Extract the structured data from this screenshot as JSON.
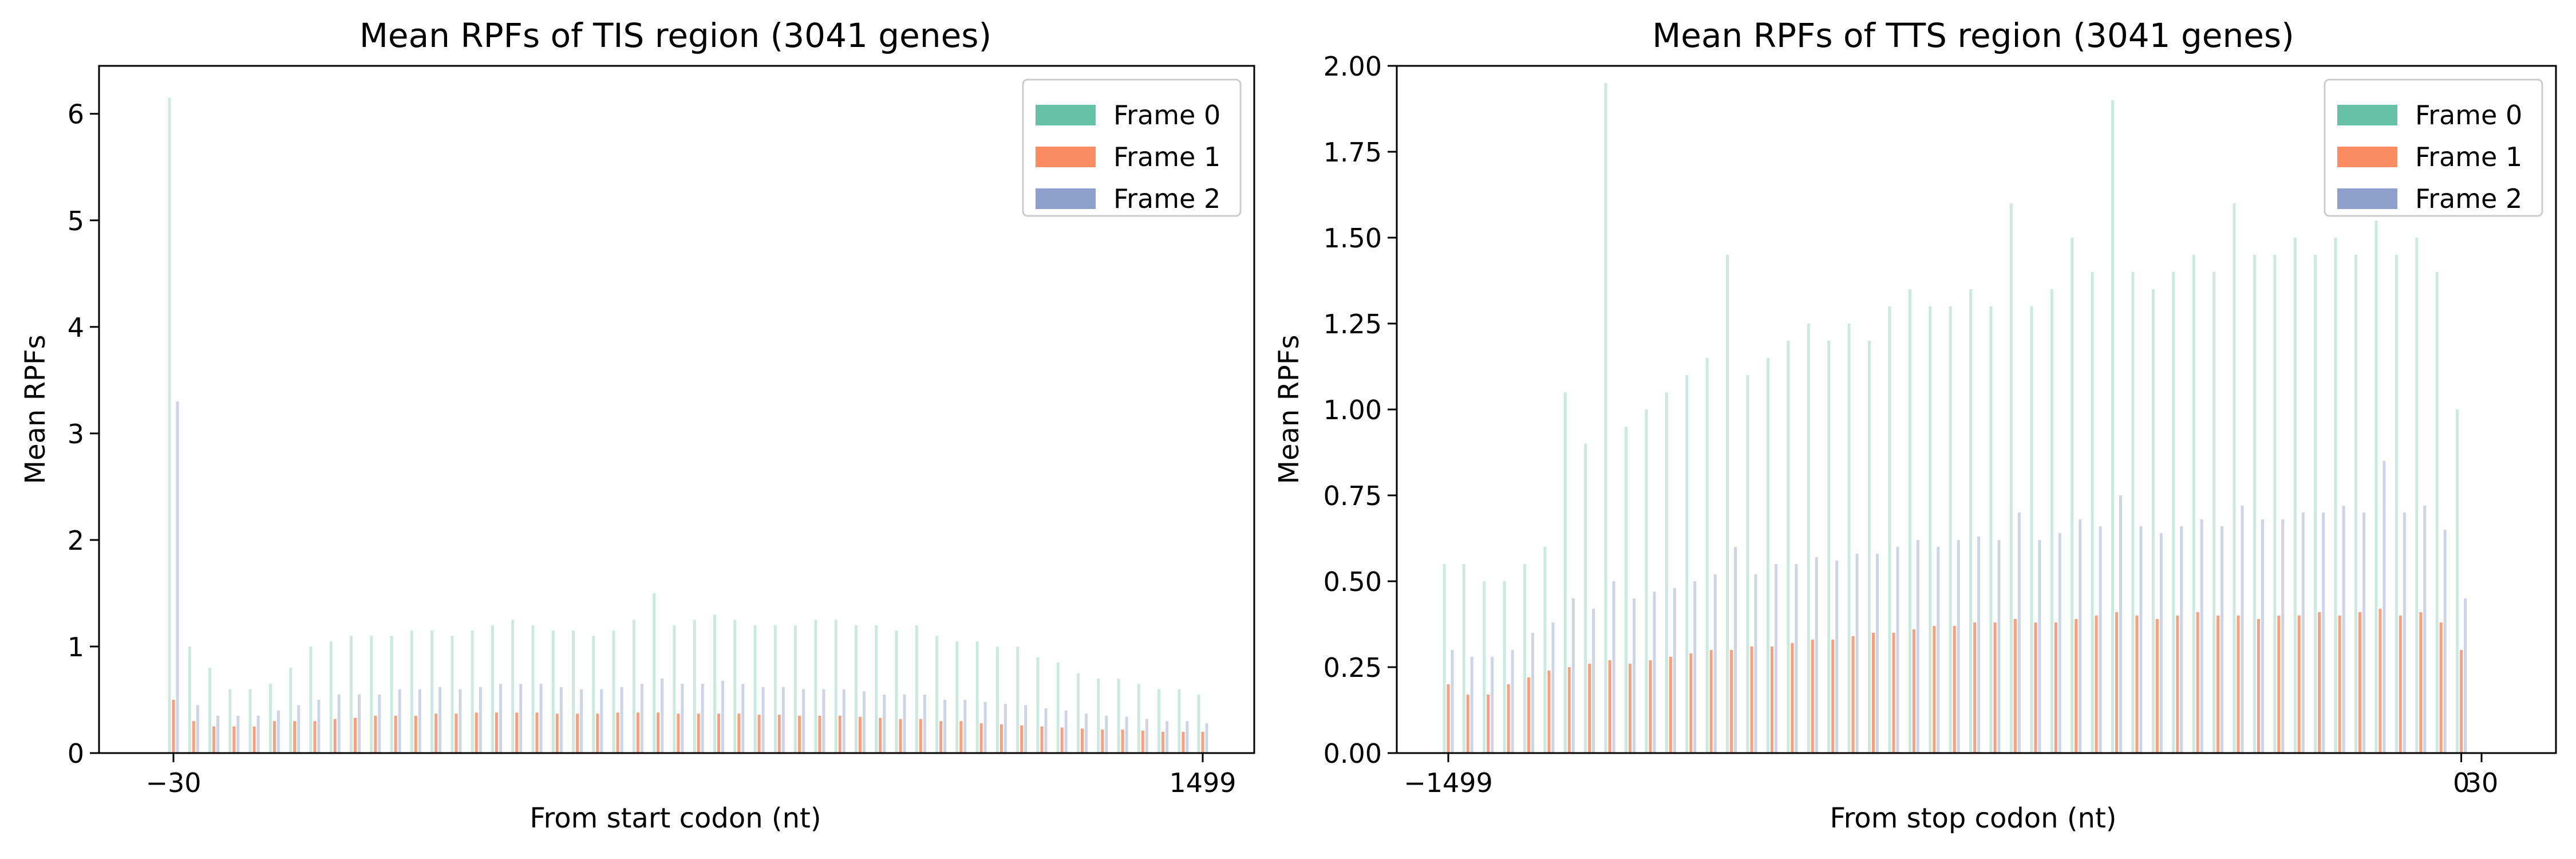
{
  "colors": {
    "frame0": "#66c2a5",
    "frame1": "#fc8d62",
    "frame2": "#8da0cb"
  },
  "chart_data": [
    {
      "type": "bar",
      "title": "Mean RPFs of TIS region (3041 genes)",
      "xlabel": "From start codon (nt)",
      "ylabel": "Mean RPFs",
      "xlim": [
        -30,
        1499
      ],
      "ylim": [
        0,
        6.45
      ],
      "x_ticks": [
        -30,
        1499
      ],
      "x_tick_labels": [
        "−30",
        "1499"
      ],
      "y_ticks": [
        0,
        1,
        2,
        3,
        4,
        5,
        6
      ],
      "y_tick_labels": [
        "0",
        "1",
        "2",
        "3",
        "4",
        "5",
        "6"
      ],
      "legend": {
        "position": "top-right",
        "entries": [
          "Frame 0",
          "Frame 1",
          "Frame 2"
        ]
      },
      "series": [
        {
          "name": "Frame 0",
          "x_step": 30,
          "x": [
            -30,
            0,
            30,
            60,
            90,
            120,
            150,
            180,
            210,
            240,
            270,
            300,
            330,
            360,
            390,
            420,
            450,
            480,
            510,
            540,
            570,
            600,
            630,
            660,
            690,
            720,
            750,
            780,
            810,
            840,
            870,
            900,
            930,
            960,
            990,
            1020,
            1050,
            1080,
            1110,
            1140,
            1170,
            1200,
            1230,
            1260,
            1290,
            1320,
            1350,
            1380,
            1410,
            1440,
            1470,
            1499
          ],
          "values": [
            6.15,
            1.0,
            0.8,
            0.6,
            0.6,
            0.65,
            0.8,
            1.0,
            1.05,
            1.1,
            1.1,
            1.1,
            1.15,
            1.15,
            1.1,
            1.15,
            1.2,
            1.25,
            1.2,
            1.15,
            1.15,
            1.1,
            1.15,
            1.25,
            1.5,
            1.2,
            1.25,
            1.3,
            1.25,
            1.2,
            1.2,
            1.2,
            1.25,
            1.25,
            1.2,
            1.2,
            1.15,
            1.2,
            1.1,
            1.05,
            1.05,
            1.0,
            1.0,
            0.9,
            0.85,
            0.75,
            0.7,
            0.7,
            0.65,
            0.6,
            0.6,
            0.55
          ]
        },
        {
          "name": "Frame 1",
          "x_step": 30,
          "x": [
            -30,
            0,
            30,
            60,
            90,
            120,
            150,
            180,
            210,
            240,
            270,
            300,
            330,
            360,
            390,
            420,
            450,
            480,
            510,
            540,
            570,
            600,
            630,
            660,
            690,
            720,
            750,
            780,
            810,
            840,
            870,
            900,
            930,
            960,
            990,
            1020,
            1050,
            1080,
            1110,
            1140,
            1170,
            1200,
            1230,
            1260,
            1290,
            1320,
            1350,
            1380,
            1410,
            1440,
            1470,
            1499
          ],
          "values": [
            0.5,
            0.3,
            0.25,
            0.25,
            0.25,
            0.3,
            0.3,
            0.3,
            0.32,
            0.33,
            0.35,
            0.35,
            0.35,
            0.37,
            0.37,
            0.38,
            0.38,
            0.38,
            0.38,
            0.37,
            0.37,
            0.37,
            0.38,
            0.38,
            0.38,
            0.37,
            0.37,
            0.37,
            0.37,
            0.36,
            0.36,
            0.35,
            0.35,
            0.35,
            0.34,
            0.33,
            0.32,
            0.32,
            0.3,
            0.3,
            0.28,
            0.27,
            0.26,
            0.25,
            0.24,
            0.23,
            0.22,
            0.22,
            0.21,
            0.2,
            0.2,
            0.2
          ]
        },
        {
          "name": "Frame 2",
          "x_step": 30,
          "x": [
            -30,
            0,
            30,
            60,
            90,
            120,
            150,
            180,
            210,
            240,
            270,
            300,
            330,
            360,
            390,
            420,
            450,
            480,
            510,
            540,
            570,
            600,
            630,
            660,
            690,
            720,
            750,
            780,
            810,
            840,
            870,
            900,
            930,
            960,
            990,
            1020,
            1050,
            1080,
            1110,
            1140,
            1170,
            1200,
            1230,
            1260,
            1290,
            1320,
            1350,
            1380,
            1410,
            1440,
            1470,
            1499
          ],
          "values": [
            3.3,
            0.45,
            0.35,
            0.35,
            0.35,
            0.4,
            0.45,
            0.5,
            0.55,
            0.55,
            0.55,
            0.6,
            0.6,
            0.62,
            0.6,
            0.62,
            0.65,
            0.65,
            0.65,
            0.62,
            0.6,
            0.6,
            0.62,
            0.65,
            0.7,
            0.65,
            0.65,
            0.68,
            0.65,
            0.62,
            0.62,
            0.6,
            0.6,
            0.6,
            0.58,
            0.55,
            0.55,
            0.55,
            0.5,
            0.5,
            0.48,
            0.46,
            0.45,
            0.42,
            0.4,
            0.37,
            0.35,
            0.34,
            0.32,
            0.3,
            0.3,
            0.28
          ]
        }
      ]
    },
    {
      "type": "bar",
      "title": "Mean RPFs of TTS region (3041 genes)",
      "xlabel": "From stop codon (nt)",
      "ylabel": "Mean RPFs",
      "xlim": [
        -1499,
        30
      ],
      "ylim": [
        0,
        2.0
      ],
      "x_ticks": [
        -1499,
        0,
        30
      ],
      "x_tick_labels": [
        "−1499",
        "0",
        "30"
      ],
      "y_ticks": [
        0.0,
        0.25,
        0.5,
        0.75,
        1.0,
        1.25,
        1.5,
        1.75,
        2.0
      ],
      "y_tick_labels": [
        "0.00",
        "0.25",
        "0.50",
        "0.75",
        "1.00",
        "1.25",
        "1.50",
        "1.75",
        "2.00"
      ],
      "legend": {
        "position": "top-right",
        "entries": [
          "Frame 0",
          "Frame 1",
          "Frame 2"
        ]
      },
      "series": [
        {
          "name": "Frame 0",
          "x_step": 30,
          "x": [
            -1499,
            -1470,
            -1440,
            -1410,
            -1380,
            -1350,
            -1320,
            -1290,
            -1260,
            -1230,
            -1200,
            -1170,
            -1140,
            -1110,
            -1080,
            -1050,
            -1020,
            -990,
            -960,
            -930,
            -900,
            -870,
            -840,
            -810,
            -780,
            -750,
            -720,
            -690,
            -660,
            -630,
            -600,
            -570,
            -540,
            -510,
            -480,
            -450,
            -420,
            -390,
            -360,
            -330,
            -300,
            -270,
            -240,
            -210,
            -180,
            -150,
            -120,
            -90,
            -60,
            -30,
            0,
            30
          ],
          "values": [
            0.55,
            0.55,
            0.5,
            0.5,
            0.55,
            0.6,
            1.05,
            0.9,
            1.95,
            0.95,
            1.0,
            1.05,
            1.1,
            1.15,
            1.45,
            1.1,
            1.15,
            1.2,
            1.25,
            1.2,
            1.25,
            1.2,
            1.3,
            1.35,
            1.3,
            1.3,
            1.35,
            1.3,
            1.6,
            1.3,
            1.35,
            1.5,
            1.4,
            1.9,
            1.4,
            1.35,
            1.4,
            1.45,
            1.4,
            1.6,
            1.45,
            1.45,
            1.5,
            1.45,
            1.5,
            1.45,
            1.55,
            1.45,
            1.5,
            1.4,
            1.0,
            0.0
          ]
        },
        {
          "name": "Frame 1",
          "x_step": 30,
          "x": [
            -1499,
            -1470,
            -1440,
            -1410,
            -1380,
            -1350,
            -1320,
            -1290,
            -1260,
            -1230,
            -1200,
            -1170,
            -1140,
            -1110,
            -1080,
            -1050,
            -1020,
            -990,
            -960,
            -930,
            -900,
            -870,
            -840,
            -810,
            -780,
            -750,
            -720,
            -690,
            -660,
            -630,
            -600,
            -570,
            -540,
            -510,
            -480,
            -450,
            -420,
            -390,
            -360,
            -330,
            -300,
            -270,
            -240,
            -210,
            -180,
            -150,
            -120,
            -90,
            -60,
            -30,
            0,
            30
          ],
          "values": [
            0.2,
            0.17,
            0.17,
            0.2,
            0.22,
            0.24,
            0.25,
            0.26,
            0.27,
            0.26,
            0.27,
            0.28,
            0.29,
            0.3,
            0.3,
            0.31,
            0.31,
            0.32,
            0.33,
            0.33,
            0.34,
            0.35,
            0.35,
            0.36,
            0.37,
            0.37,
            0.38,
            0.38,
            0.39,
            0.38,
            0.38,
            0.39,
            0.4,
            0.41,
            0.4,
            0.39,
            0.4,
            0.41,
            0.4,
            0.4,
            0.39,
            0.4,
            0.4,
            0.41,
            0.4,
            0.41,
            0.42,
            0.4,
            0.41,
            0.38,
            0.3,
            0.0
          ]
        },
        {
          "name": "Frame 2",
          "x_step": 30,
          "x": [
            -1499,
            -1470,
            -1440,
            -1410,
            -1380,
            -1350,
            -1320,
            -1290,
            -1260,
            -1230,
            -1200,
            -1170,
            -1140,
            -1110,
            -1080,
            -1050,
            -1020,
            -990,
            -960,
            -930,
            -900,
            -870,
            -840,
            -810,
            -780,
            -750,
            -720,
            -690,
            -660,
            -630,
            -600,
            -570,
            -540,
            -510,
            -480,
            -450,
            -420,
            -390,
            -360,
            -330,
            -300,
            -270,
            -240,
            -210,
            -180,
            -150,
            -120,
            -90,
            -60,
            -30,
            0,
            30
          ],
          "values": [
            0.3,
            0.28,
            0.28,
            0.3,
            0.35,
            0.38,
            0.45,
            0.42,
            0.5,
            0.45,
            0.47,
            0.48,
            0.5,
            0.52,
            0.6,
            0.52,
            0.55,
            0.55,
            0.57,
            0.56,
            0.58,
            0.58,
            0.6,
            0.62,
            0.6,
            0.62,
            0.63,
            0.62,
            0.7,
            0.62,
            0.64,
            0.68,
            0.66,
            0.75,
            0.66,
            0.64,
            0.66,
            0.68,
            0.66,
            0.72,
            0.68,
            0.68,
            0.7,
            0.7,
            0.72,
            0.7,
            0.85,
            0.7,
            0.72,
            0.65,
            0.45,
            0.0
          ]
        }
      ]
    }
  ]
}
